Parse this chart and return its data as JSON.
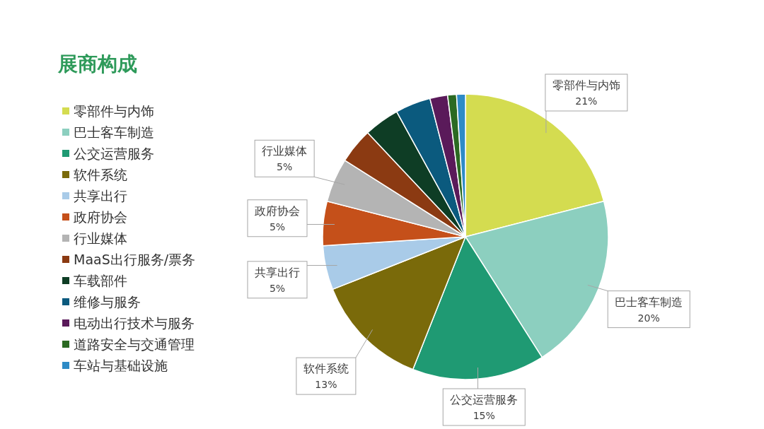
{
  "chart_data": {
    "type": "pie",
    "title": "展商构成",
    "categories": [
      "零部件与内饰",
      "巴士客车制造",
      "公交运营服务",
      "软件系统",
      "共享出行",
      "政府协会",
      "行业媒体",
      "MaaS出行服务/票务",
      "车载部件",
      "维修与服务",
      "电动出行技术与服务",
      "道路安全与交通管理",
      "车站与基础设施"
    ],
    "values": [
      21,
      20,
      15,
      13,
      5,
      5,
      5,
      4,
      4,
      4,
      2,
      1,
      1
    ],
    "colors": [
      "#d4dc50",
      "#8ccfbf",
      "#1f9a73",
      "#7a6a0a",
      "#a9cbe8",
      "#c5501a",
      "#b4b4b4",
      "#8b3a12",
      "#0e3d25",
      "#0b5a7e",
      "#5a1a5a",
      "#2b6a22",
      "#2e8bc6"
    ],
    "value_labels": [
      "21%",
      "20%",
      "15%",
      "13%",
      "5%",
      "5%",
      "5%",
      null,
      null,
      null,
      null,
      null,
      null
    ],
    "legend": "left"
  }
}
